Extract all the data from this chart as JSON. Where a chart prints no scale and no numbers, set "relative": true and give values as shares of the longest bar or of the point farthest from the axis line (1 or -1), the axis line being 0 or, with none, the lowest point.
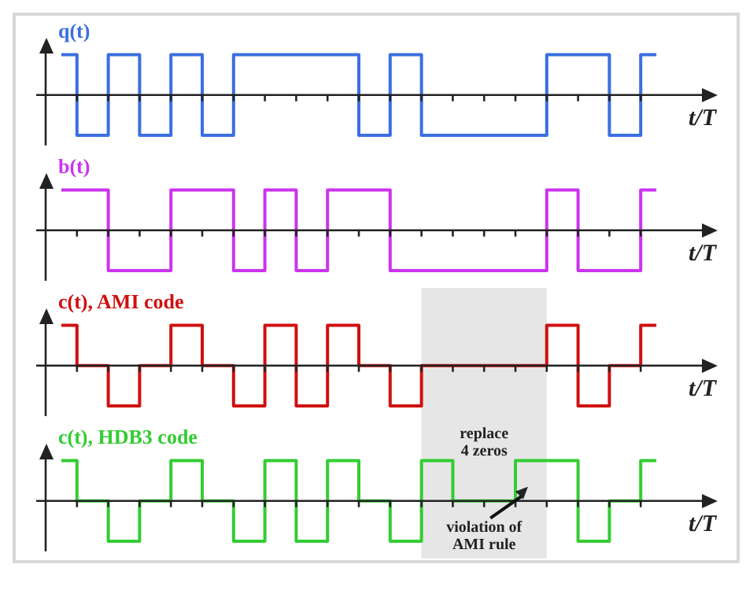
{
  "chart_data": [
    {
      "type": "step",
      "relative": true,
      "ylabel": "q(t)",
      "xlabel": "t/T",
      "categories": [
        null,
        null,
        null,
        null,
        null,
        null,
        null,
        null,
        null,
        null,
        null,
        null,
        null,
        null,
        null,
        null,
        null,
        null,
        null,
        null
      ],
      "legend": false,
      "grid": false,
      "series": [
        {
          "color": "#3a6fe0",
          "values": [
            1,
            -1,
            1,
            -1,
            1,
            -1,
            1,
            1,
            1,
            1,
            -1,
            1,
            -1,
            -1,
            -1,
            -1,
            1,
            1,
            -1,
            1
          ]
        }
      ]
    },
    {
      "type": "step",
      "relative": true,
      "ylabel": "b(t)",
      "xlabel": "t/T",
      "categories": [
        null,
        null,
        null,
        null,
        null,
        null,
        null,
        null,
        null,
        null,
        null,
        null,
        null,
        null,
        null,
        null,
        null,
        null,
        null,
        null
      ],
      "legend": false,
      "grid": false,
      "series": [
        {
          "color": "#cc33ee",
          "values": [
            1,
            1,
            -1,
            -1,
            1,
            1,
            -1,
            1,
            -1,
            1,
            1,
            -1,
            -1,
            -1,
            -1,
            -1,
            1,
            -1,
            -1,
            1
          ]
        }
      ]
    },
    {
      "type": "step",
      "relative": true,
      "ylabel": "c(t), AMI code",
      "xlabel": "t/T",
      "categories": [
        null,
        null,
        null,
        null,
        null,
        null,
        null,
        null,
        null,
        null,
        null,
        null,
        null,
        null,
        null,
        null,
        null,
        null,
        null,
        null
      ],
      "legend": false,
      "grid": false,
      "series": [
        {
          "color": "#d01010",
          "values": [
            1,
            0,
            -1,
            0,
            1,
            0,
            -1,
            1,
            -1,
            1,
            0,
            -1,
            0,
            0,
            0,
            0,
            1,
            -1,
            0,
            1
          ]
        }
      ]
    },
    {
      "type": "step",
      "relative": true,
      "ylabel": "c(t), HDB3 code",
      "xlabel": "t/T",
      "categories": [
        null,
        null,
        null,
        null,
        null,
        null,
        null,
        null,
        null,
        null,
        null,
        null,
        null,
        null,
        null,
        null,
        null,
        null,
        null,
        null
      ],
      "legend": false,
      "grid": false,
      "annotations": [
        "replace 4 zeros",
        "violation of AMI rule"
      ],
      "series": [
        {
          "color": "#33cc33",
          "values": [
            1,
            0,
            -1,
            0,
            1,
            0,
            -1,
            1,
            -1,
            1,
            0,
            -1,
            1,
            0,
            0,
            1,
            1,
            -1,
            0,
            1
          ]
        }
      ]
    }
  ]
}
